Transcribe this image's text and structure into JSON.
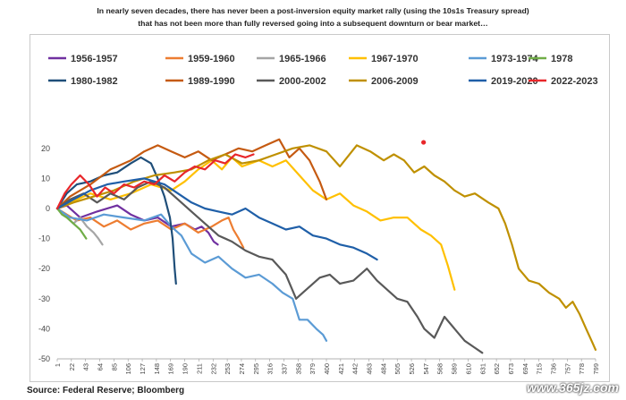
{
  "header": {
    "line1": "In nearly seven decades, there has never been a post-inversion equity market rally (using the 10s1s Treasury spread)",
    "line2": "that has not been more than fully reversed going into a subsequent downturn or bear market…"
  },
  "footer": {
    "source": "Source: Federal Reserve; Bloomberg",
    "watermark": "www.365jz.com"
  },
  "chart_data": {
    "type": "line",
    "grid": false,
    "legend_position": "top",
    "xlim": [
      1,
      799
    ],
    "ylim": [
      -50,
      25
    ],
    "y_ticks": [
      "20",
      "10",
      "0",
      "-10",
      "-20",
      "-30",
      "-40",
      "-50"
    ],
    "x_ticks": [
      "1",
      "22",
      "43",
      "64",
      "85",
      "106",
      "127",
      "148",
      "169",
      "190",
      "211",
      "232",
      "253",
      "274",
      "295",
      "316",
      "337",
      "358",
      "379",
      "400",
      "421",
      "442",
      "463",
      "484",
      "505",
      "526",
      "547",
      "568",
      "589",
      "610",
      "631",
      "652",
      "673",
      "694",
      "715",
      "736",
      "757",
      "778",
      "799"
    ],
    "outlier_point": {
      "x": 544,
      "y": 22,
      "color": "#e8262a"
    },
    "series": [
      {
        "name": "1956-1957",
        "color": "#7030a0",
        "points": [
          [
            1,
            0
          ],
          [
            15,
            1
          ],
          [
            35,
            -3
          ],
          [
            60,
            -1
          ],
          [
            90,
            1
          ],
          [
            110,
            -2
          ],
          [
            130,
            -4
          ],
          [
            150,
            -3
          ],
          [
            170,
            -6
          ],
          [
            190,
            -5
          ],
          [
            205,
            -7
          ],
          [
            215,
            -6
          ],
          [
            225,
            -8
          ],
          [
            233,
            -11
          ],
          [
            239,
            -12
          ]
        ]
      },
      {
        "name": "1959-1960",
        "color": "#ed7d31",
        "points": [
          [
            1,
            0
          ],
          [
            15,
            -2
          ],
          [
            30,
            -4
          ],
          [
            50,
            -3
          ],
          [
            70,
            -6
          ],
          [
            90,
            -4
          ],
          [
            110,
            -7
          ],
          [
            130,
            -5
          ],
          [
            150,
            -4
          ],
          [
            170,
            -7
          ],
          [
            190,
            -5
          ],
          [
            210,
            -8
          ],
          [
            230,
            -6
          ],
          [
            245,
            -4
          ],
          [
            255,
            -3
          ],
          [
            262,
            -7
          ],
          [
            270,
            -10
          ],
          [
            277,
            -13
          ]
        ]
      },
      {
        "name": "1965-1966",
        "color": "#a5a5a5",
        "points": [
          [
            1,
            0
          ],
          [
            12,
            -2
          ],
          [
            25,
            -5
          ],
          [
            35,
            -3
          ],
          [
            45,
            -6
          ],
          [
            55,
            -8
          ],
          [
            62,
            -10
          ],
          [
            68,
            -12
          ]
        ]
      },
      {
        "name": "1967-1970",
        "color": "#ffc000",
        "points": [
          [
            1,
            0
          ],
          [
            20,
            2
          ],
          [
            50,
            5
          ],
          [
            80,
            3
          ],
          [
            110,
            5
          ],
          [
            140,
            8
          ],
          [
            170,
            6
          ],
          [
            190,
            9
          ],
          [
            210,
            13
          ],
          [
            230,
            16
          ],
          [
            245,
            13
          ],
          [
            260,
            17
          ],
          [
            275,
            14
          ],
          [
            300,
            16
          ],
          [
            320,
            14
          ],
          [
            340,
            16
          ],
          [
            360,
            11
          ],
          [
            380,
            6
          ],
          [
            400,
            3
          ],
          [
            420,
            5
          ],
          [
            440,
            1
          ],
          [
            460,
            -1
          ],
          [
            480,
            -4
          ],
          [
            500,
            -3
          ],
          [
            520,
            -3
          ],
          [
            540,
            -7
          ],
          [
            555,
            -9
          ],
          [
            570,
            -12
          ],
          [
            580,
            -19
          ],
          [
            590,
            -27
          ]
        ]
      },
      {
        "name": "1973-1974",
        "color": "#5b9bd5",
        "points": [
          [
            1,
            0
          ],
          [
            20,
            -3
          ],
          [
            45,
            -4
          ],
          [
            70,
            -2
          ],
          [
            100,
            -3
          ],
          [
            130,
            -4
          ],
          [
            155,
            -2
          ],
          [
            170,
            -6
          ],
          [
            185,
            -9
          ],
          [
            200,
            -15
          ],
          [
            220,
            -18
          ],
          [
            240,
            -16
          ],
          [
            260,
            -20
          ],
          [
            280,
            -23
          ],
          [
            300,
            -22
          ],
          [
            320,
            -25
          ],
          [
            335,
            -28
          ],
          [
            350,
            -30
          ],
          [
            360,
            -37
          ],
          [
            372,
            -37
          ],
          [
            385,
            -40
          ],
          [
            395,
            -42
          ],
          [
            400,
            -44
          ]
        ]
      },
      {
        "name": "1978",
        "color": "#70ad47",
        "points": [
          [
            1,
            0
          ],
          [
            8,
            -2
          ],
          [
            15,
            -3
          ],
          [
            25,
            -5
          ],
          [
            35,
            -7
          ],
          [
            44,
            -10
          ]
        ]
      },
      {
        "name": "1980-1982",
        "color": "#1f4e79",
        "points": [
          [
            1,
            0
          ],
          [
            15,
            5
          ],
          [
            30,
            8
          ],
          [
            50,
            9
          ],
          [
            70,
            11
          ],
          [
            90,
            12
          ],
          [
            110,
            15
          ],
          [
            125,
            17
          ],
          [
            140,
            15
          ],
          [
            150,
            10
          ],
          [
            160,
            4
          ],
          [
            168,
            -3
          ],
          [
            172,
            -10
          ],
          [
            175,
            -20
          ],
          [
            177,
            -25
          ]
        ]
      },
      {
        "name": "1989-1990",
        "color": "#c55a11",
        "points": [
          [
            1,
            0
          ],
          [
            20,
            4
          ],
          [
            50,
            8
          ],
          [
            80,
            13
          ],
          [
            110,
            16
          ],
          [
            130,
            19
          ],
          [
            150,
            21
          ],
          [
            170,
            19
          ],
          [
            190,
            17
          ],
          [
            210,
            19
          ],
          [
            230,
            16
          ],
          [
            250,
            18
          ],
          [
            270,
            20
          ],
          [
            290,
            19
          ],
          [
            310,
            21
          ],
          [
            330,
            23
          ],
          [
            345,
            17
          ],
          [
            360,
            20
          ],
          [
            375,
            16
          ],
          [
            390,
            9
          ],
          [
            400,
            3
          ]
        ]
      },
      {
        "name": "2000-2002",
        "color": "#595959",
        "points": [
          [
            1,
            0
          ],
          [
            20,
            3
          ],
          [
            40,
            5
          ],
          [
            60,
            2
          ],
          [
            80,
            5
          ],
          [
            100,
            3
          ],
          [
            120,
            7
          ],
          [
            140,
            9
          ],
          [
            160,
            7
          ],
          [
            180,
            3
          ],
          [
            200,
            -1
          ],
          [
            220,
            -5
          ],
          [
            240,
            -9
          ],
          [
            260,
            -11
          ],
          [
            280,
            -14
          ],
          [
            300,
            -16
          ],
          [
            320,
            -17
          ],
          [
            340,
            -22
          ],
          [
            355,
            -30
          ],
          [
            365,
            -28
          ],
          [
            375,
            -26
          ],
          [
            390,
            -23
          ],
          [
            405,
            -22
          ],
          [
            420,
            -25
          ],
          [
            440,
            -24
          ],
          [
            460,
            -20
          ],
          [
            475,
            -24
          ],
          [
            490,
            -27
          ],
          [
            505,
            -30
          ],
          [
            520,
            -31
          ],
          [
            535,
            -36
          ],
          [
            545,
            -40
          ],
          [
            560,
            -43
          ],
          [
            575,
            -36
          ],
          [
            590,
            -40
          ],
          [
            605,
            -44
          ],
          [
            618,
            -46
          ],
          [
            631,
            -48
          ]
        ]
      },
      {
        "name": "2006-2009",
        "color": "#bf9000",
        "points": [
          [
            1,
            0
          ],
          [
            25,
            2
          ],
          [
            55,
            4
          ],
          [
            85,
            6
          ],
          [
            115,
            9
          ],
          [
            145,
            11
          ],
          [
            175,
            12
          ],
          [
            200,
            13
          ],
          [
            225,
            16
          ],
          [
            250,
            18
          ],
          [
            275,
            15
          ],
          [
            300,
            16
          ],
          [
            325,
            18
          ],
          [
            350,
            20
          ],
          [
            375,
            21
          ],
          [
            400,
            19
          ],
          [
            420,
            14
          ],
          [
            445,
            21
          ],
          [
            465,
            19
          ],
          [
            485,
            16
          ],
          [
            500,
            18
          ],
          [
            515,
            16
          ],
          [
            530,
            12
          ],
          [
            545,
            14
          ],
          [
            560,
            11
          ],
          [
            575,
            9
          ],
          [
            590,
            6
          ],
          [
            605,
            4
          ],
          [
            620,
            5
          ],
          [
            640,
            2
          ],
          [
            655,
            0
          ],
          [
            665,
            -5
          ],
          [
            675,
            -12
          ],
          [
            685,
            -20
          ],
          [
            700,
            -24
          ],
          [
            715,
            -25
          ],
          [
            730,
            -28
          ],
          [
            745,
            -30
          ],
          [
            755,
            -33
          ],
          [
            765,
            -31
          ],
          [
            775,
            -35
          ],
          [
            785,
            -40
          ],
          [
            793,
            -44
          ],
          [
            799,
            -47
          ]
        ]
      },
      {
        "name": "2019-2020",
        "color": "#1f5fa8",
        "points": [
          [
            1,
            0
          ],
          [
            25,
            3
          ],
          [
            50,
            6
          ],
          [
            75,
            8
          ],
          [
            100,
            9
          ],
          [
            130,
            10
          ],
          [
            160,
            8
          ],
          [
            180,
            5
          ],
          [
            200,
            2
          ],
          [
            220,
            0
          ],
          [
            240,
            -1
          ],
          [
            260,
            -2
          ],
          [
            280,
            0
          ],
          [
            300,
            -3
          ],
          [
            320,
            -5
          ],
          [
            340,
            -7
          ],
          [
            360,
            -6
          ],
          [
            380,
            -9
          ],
          [
            400,
            -10
          ],
          [
            420,
            -12
          ],
          [
            440,
            -13
          ],
          [
            460,
            -15
          ],
          [
            475,
            -17
          ]
        ]
      },
      {
        "name": "2022-2023",
        "color": "#e8262a",
        "points": [
          [
            1,
            0
          ],
          [
            12,
            5
          ],
          [
            22,
            8
          ],
          [
            35,
            11
          ],
          [
            48,
            8
          ],
          [
            60,
            4
          ],
          [
            72,
            7
          ],
          [
            85,
            5
          ],
          [
            100,
            8
          ],
          [
            115,
            7
          ],
          [
            130,
            9
          ],
          [
            145,
            8
          ],
          [
            160,
            11
          ],
          [
            175,
            9
          ],
          [
            190,
            12
          ],
          [
            205,
            14
          ],
          [
            220,
            13
          ],
          [
            235,
            16
          ],
          [
            250,
            15
          ],
          [
            265,
            18
          ],
          [
            280,
            17
          ],
          [
            292,
            18
          ]
        ]
      }
    ]
  }
}
